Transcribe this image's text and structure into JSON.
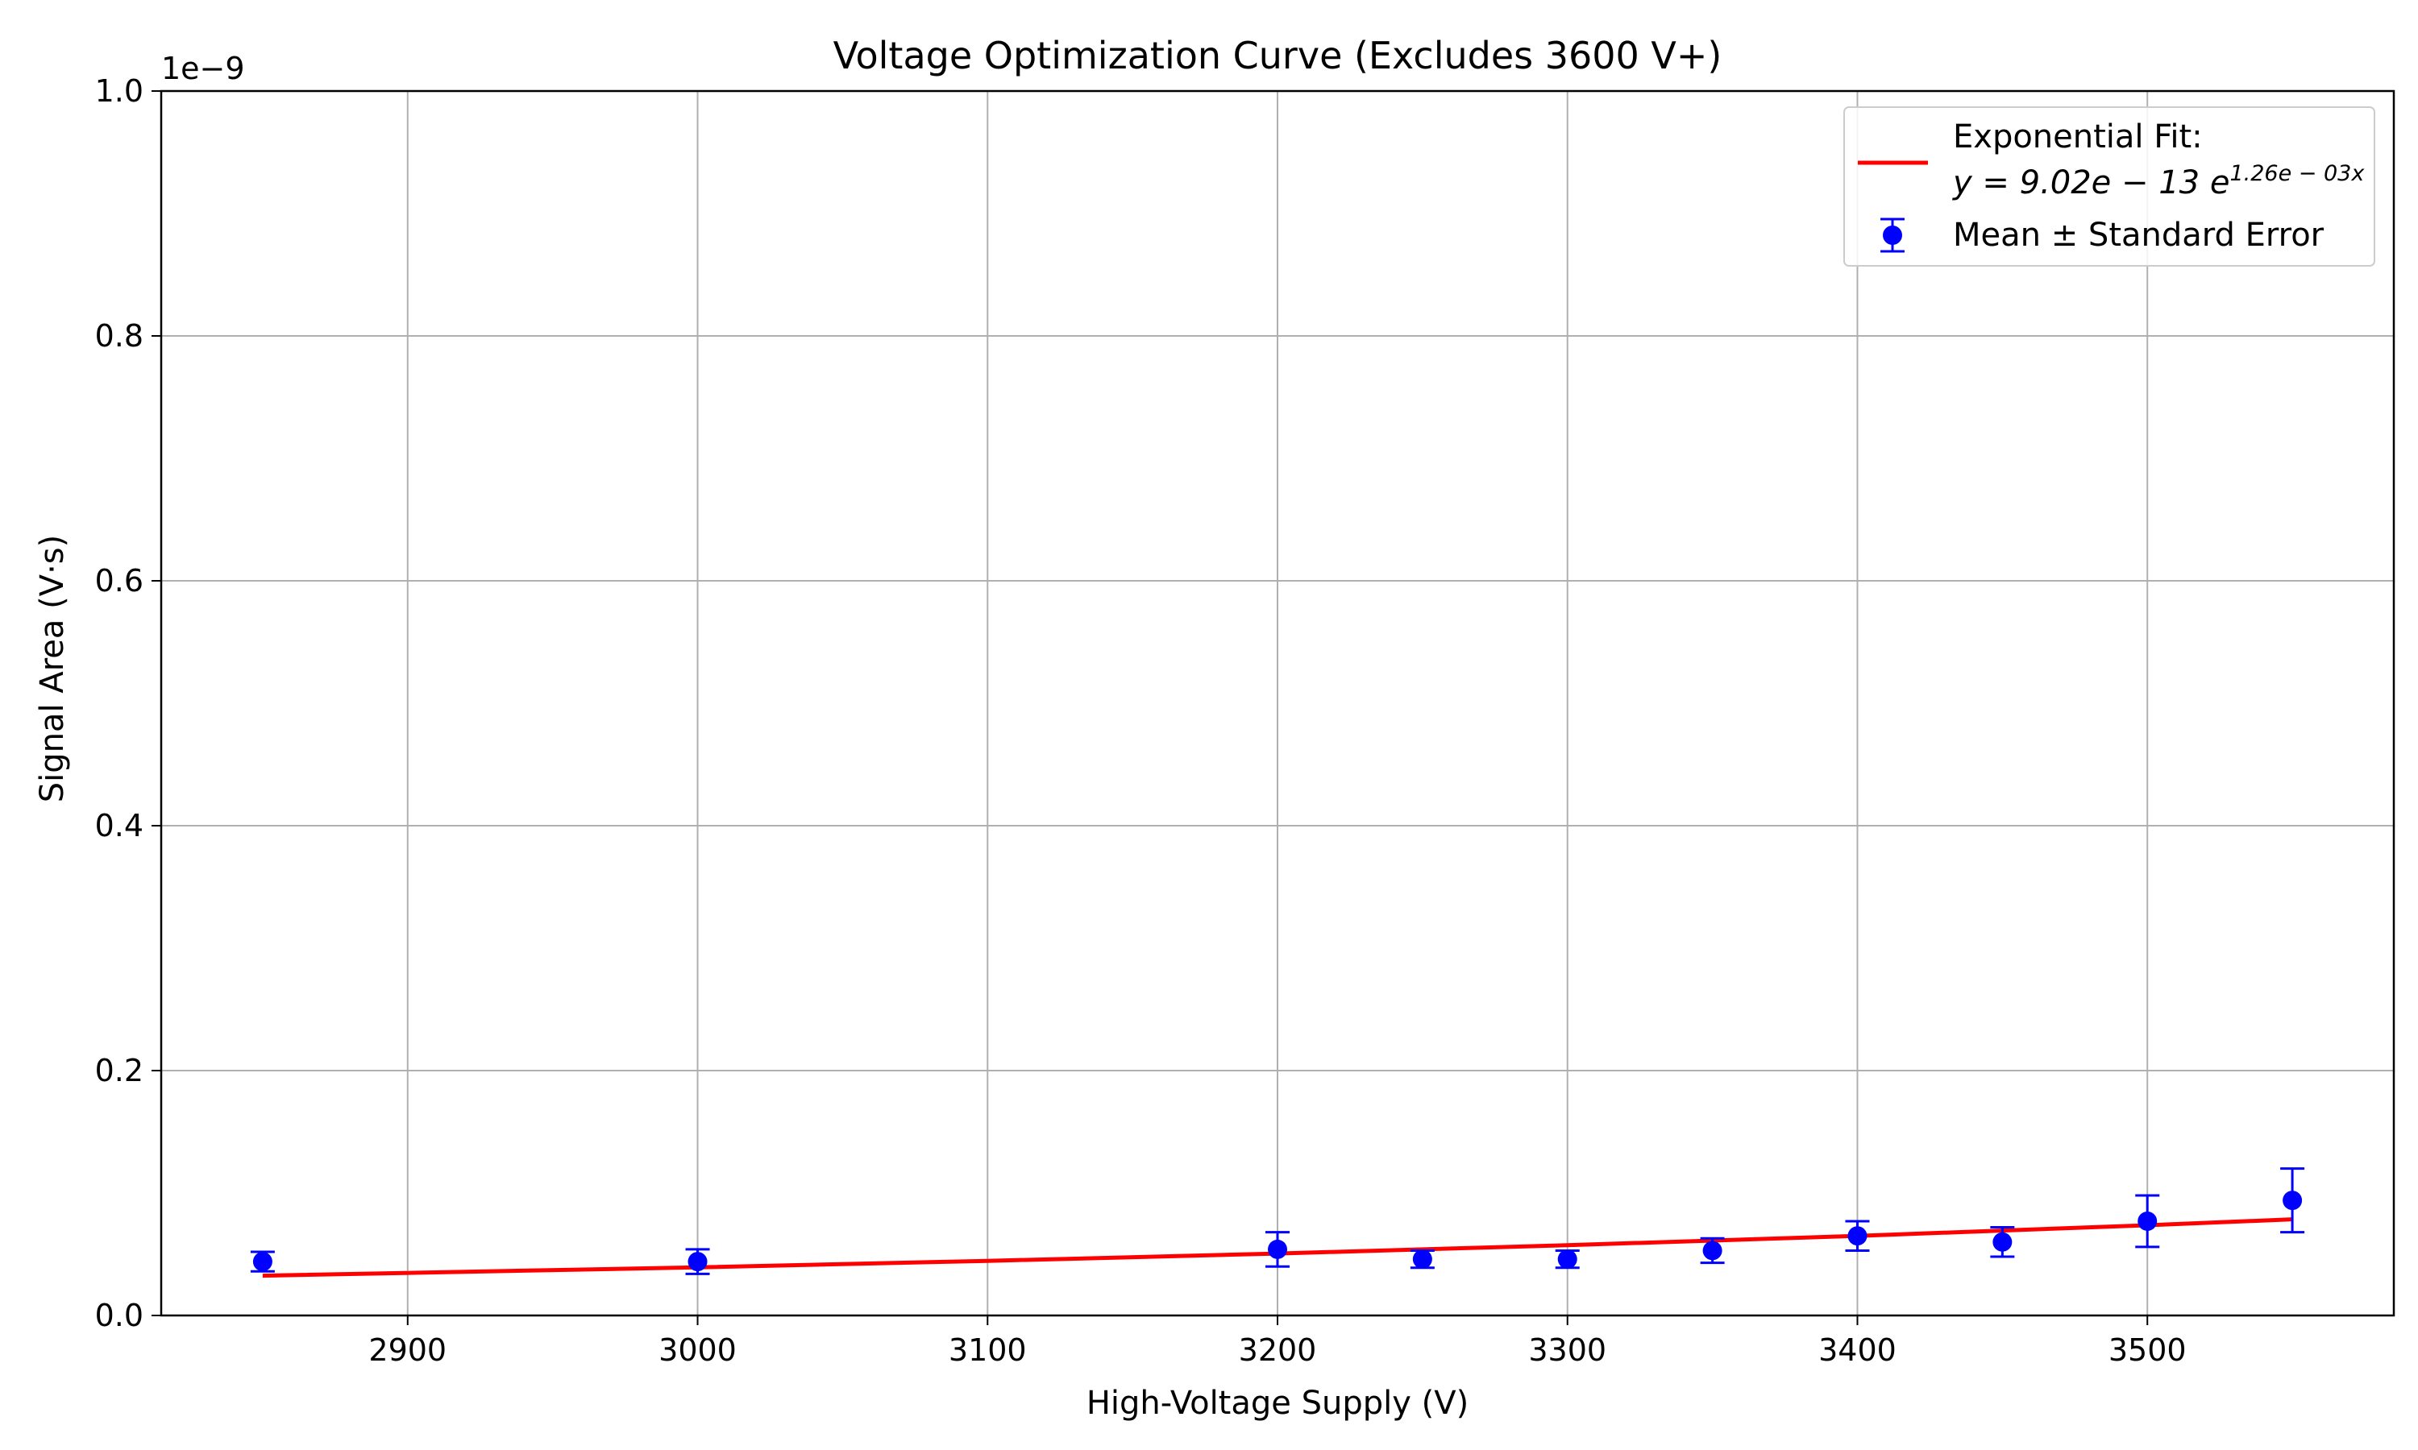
{
  "chart_data": {
    "type": "scatter",
    "title": "Voltage Optimization Curve (Excludes 3600 V+)",
    "xlabel": "High-Voltage Supply (V)",
    "ylabel": "Signal Area (V·s)",
    "y_offset_label": "1e−9",
    "xlim": [
      2815,
      3585
    ],
    "ylim": [
      0.0,
      1.0
    ],
    "x_ticks": [
      2900,
      3000,
      3100,
      3200,
      3300,
      3400,
      3500
    ],
    "y_ticks": [
      0.0,
      0.2,
      0.4,
      0.6,
      0.8,
      1.0
    ],
    "y_tick_labels": [
      "0.0",
      "0.2",
      "0.4",
      "0.6",
      "0.8",
      "1.0"
    ],
    "grid": true,
    "legend_position": "top-right",
    "colors": {
      "points": "#0000ff",
      "fit": "#ff0000",
      "grid": "#b0b0b0"
    },
    "series": [
      {
        "name": "Mean ± Standard Error",
        "kind": "errorbar",
        "x": [
          2850,
          3000,
          3200,
          3250,
          3300,
          3350,
          3400,
          3450,
          3500,
          3550
        ],
        "y": [
          0.044,
          0.044,
          0.054,
          0.046,
          0.046,
          0.053,
          0.065,
          0.06,
          0.077,
          0.094
        ],
        "yerr": [
          0.008,
          0.01,
          0.014,
          0.007,
          0.007,
          0.01,
          0.012,
          0.012,
          0.021,
          0.026
        ]
      },
      {
        "kind": "line",
        "x": [
          2850,
          3000,
          3100,
          3200,
          3300,
          3400,
          3500,
          3550
        ],
        "y": [
          0.0325,
          0.0393,
          0.0446,
          0.0506,
          0.0574,
          0.065,
          0.0737,
          0.0785
        ]
      }
    ],
    "legend": {
      "fit_label_line1": "Exponential Fit:",
      "fit_formula": "y = 9.02e − 13 e",
      "fit_exponent": "1.26e − 03x",
      "points_label": "Mean ± Standard Error"
    }
  }
}
